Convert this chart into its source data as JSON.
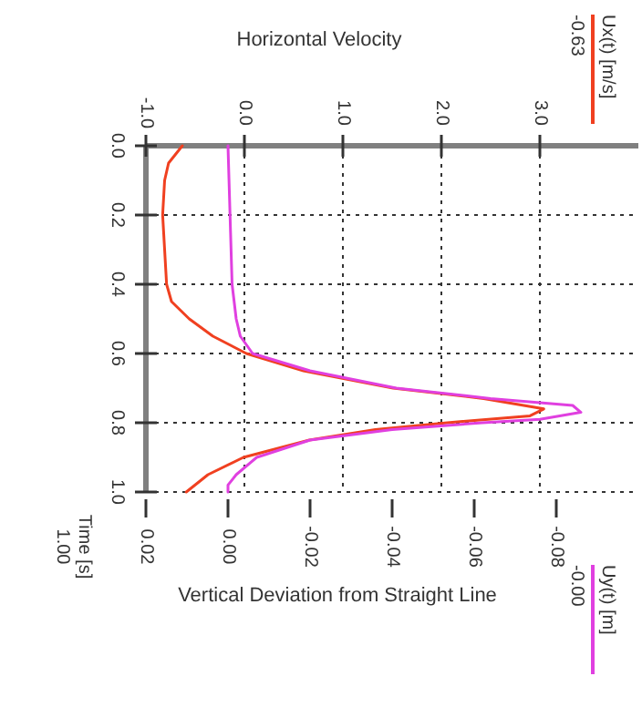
{
  "chart_data": {
    "type": "line",
    "x2label": "Horizontal Velocity",
    "xlabel": "Vertical Deviation from Straight Line",
    "ylabel": "Time [s]",
    "annotations": [
      "-0.63",
      "-0.00",
      "1.00"
    ],
    "ylim": [
      1,
      0
    ],
    "yticks": [
      {
        "value": 0,
        "label": "0.0"
      },
      {
        "value": 0.2,
        "label": "0.2"
      },
      {
        "value": 0.4,
        "label": "0.4"
      },
      {
        "value": 0.6,
        "label": "0.6"
      },
      {
        "value": 0.8,
        "label": "0.8"
      },
      {
        "value": 1,
        "label": "1.0"
      }
    ],
    "x2lim": [
      -1,
      4
    ],
    "x2ticks": [
      {
        "value": -1,
        "label": "-1.0"
      },
      {
        "value": 0,
        "label": "0.0"
      },
      {
        "value": 1,
        "label": "1.0"
      },
      {
        "value": 2,
        "label": "2.0"
      },
      {
        "value": 3,
        "label": "3.0"
      }
    ],
    "xlim": [
      0.02,
      -0.1
    ],
    "xticks": [
      0.02,
      {
        "value": 0,
        "label": "0.00"
      },
      -0.02,
      -0.04,
      -0.06,
      -0.08
    ],
    "grid": true,
    "legend": "right",
    "line_style": "solid",
    "marker": "none",
    "series": [
      {
        "name": "Ux(t) [m/s]",
        "color": "#f04020",
        "axis": "x2",
        "x": [
          -0.63,
          -0.77,
          -0.81,
          -0.83,
          -0.81,
          -0.79,
          -0.74,
          -0.56,
          -0.32,
          0.02,
          0.6,
          1.51,
          2.43,
          3.04,
          2.9,
          2.06,
          1.33,
          0.66,
          -0.01,
          -0.37,
          -0.59
        ],
        "values": [
          0,
          0.05,
          0.1,
          0.2,
          0.3,
          0.4,
          0.45,
          0.5,
          0.55,
          0.6,
          0.65,
          0.7,
          0.73,
          0.76,
          0.78,
          0.8,
          0.82,
          0.85,
          0.9,
          0.95,
          1.0
        ]
      },
      {
        "name": "Uy(t) [m]",
        "color": "#e040e0",
        "x": [
          0,
          -0.0005,
          -0.001,
          -0.002,
          -0.003,
          -0.006,
          -0.02,
          -0.041,
          -0.064,
          -0.084,
          -0.086,
          -0.076,
          -0.062,
          -0.04,
          -0.02,
          -0.007,
          -0.002,
          0,
          0
        ],
        "values": [
          0,
          0.2,
          0.4,
          0.5,
          0.55,
          0.6,
          0.65,
          0.7,
          0.73,
          0.75,
          0.77,
          0.79,
          0.8,
          0.82,
          0.85,
          0.9,
          0.95,
          0.98,
          1.0
        ]
      }
    ]
  }
}
